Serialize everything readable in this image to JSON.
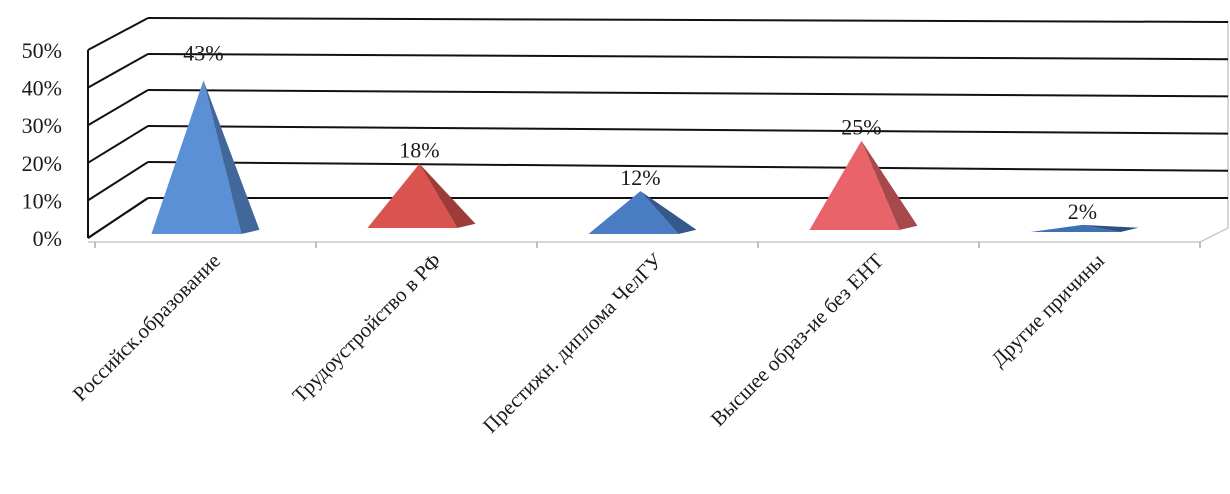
{
  "chart_data": {
    "type": "bar",
    "shape": "pyramid-3d",
    "categories": [
      "Российск.образование",
      "Трудоустройство в РФ",
      "Престижн. диплома ЧелГУ",
      "Высшее образ-ие без ЕНТ",
      "Другие причины"
    ],
    "values": [
      43,
      18,
      12,
      25,
      2
    ],
    "data_labels": [
      "43%",
      "18%",
      "12%",
      "25%",
      "2%"
    ],
    "colors": [
      "#5b8fd6",
      "#d9534f",
      "#4a7cc4",
      "#e8646a",
      "#3f6fb5"
    ],
    "y_ticks": [
      "0%",
      "10%",
      "20%",
      "30%",
      "40%",
      "50%"
    ],
    "ylim": [
      0,
      50
    ],
    "grid": true,
    "title": "",
    "xlabel": "",
    "ylabel": ""
  }
}
